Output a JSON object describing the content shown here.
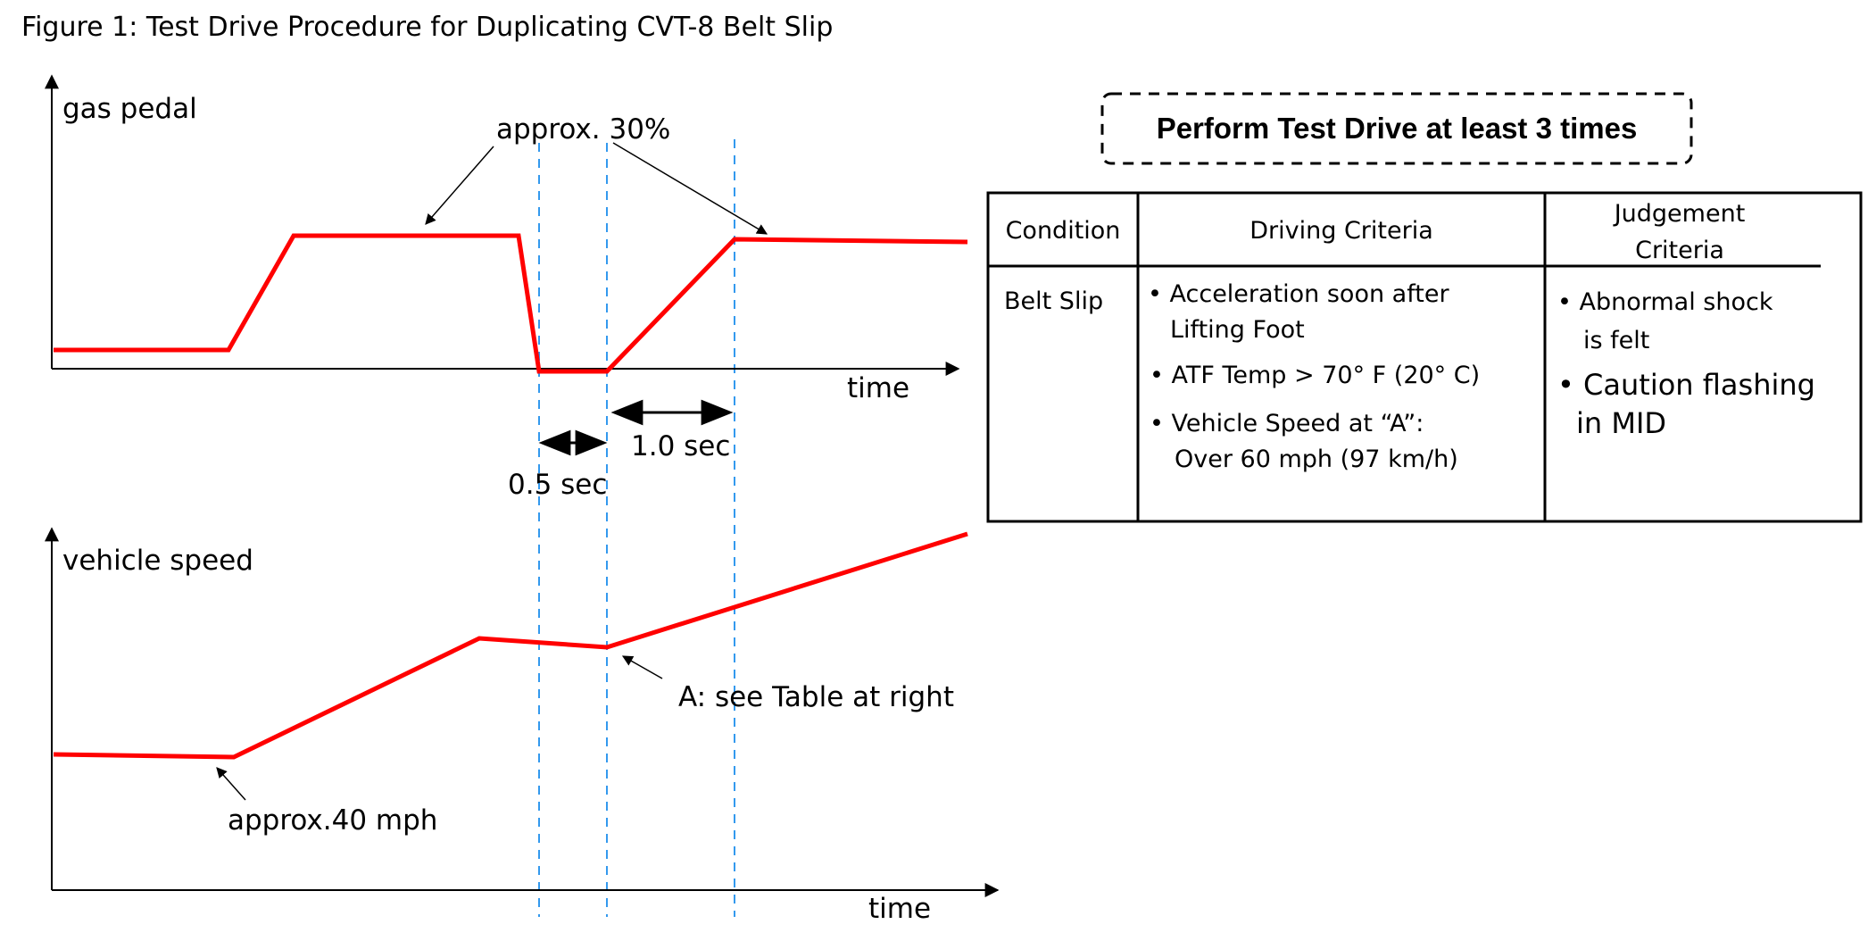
{
  "figure_title": "Figure 1: Test Drive Procedure for Duplicating CVT-8 Belt Slip",
  "colors": {
    "trace": "#ff0000",
    "guide": "#3399ee",
    "ink": "#000000"
  },
  "gas_chart": {
    "ylabel": "gas pedal",
    "xlabel": "time",
    "annotation": "approx. 30%",
    "interval_short": "0.5 sec",
    "interval_long": "1.0 sec"
  },
  "speed_chart": {
    "ylabel": "vehicle speed",
    "xlabel": "time",
    "annotation_a": "A: see Table at right",
    "annotation_start": "approx.40 mph"
  },
  "banner": "Perform Test Drive at least 3 times",
  "table": {
    "headers": {
      "condition": "Condition",
      "driving": "Driving Criteria",
      "judgement_1": "Judgement",
      "judgement_2": "Criteria"
    },
    "condition": "Belt Slip",
    "driving": [
      "• Acceleration soon after",
      "Lifting Foot",
      "• ATF Temp > 70° F (20° C)",
      "• Vehicle Speed at “A”:",
      "Over 60 mph (97 km/h)"
    ],
    "judgement": [
      "• Abnormal shock",
      "is felt",
      "• Caution flashing",
      "in MID"
    ]
  }
}
